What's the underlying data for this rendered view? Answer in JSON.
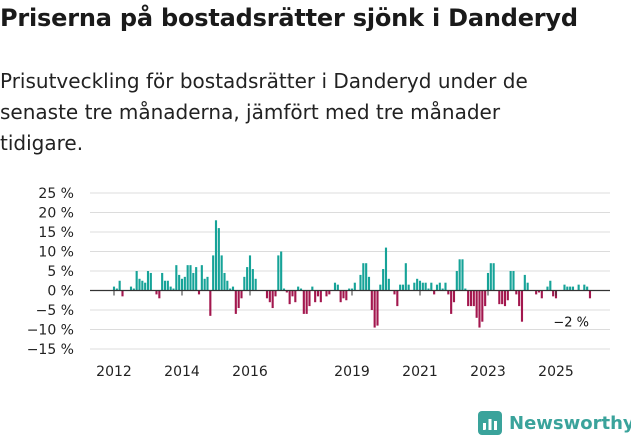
{
  "header": {
    "title": "Priserna på bostadsrätter sjönk i Danderyd",
    "subtitle": "Prisutveckling för bostadsrätter i Danderyd under de senaste tre månaderna, jämfört med tre månader tidigare."
  },
  "brand": {
    "name": "Newsworthy",
    "color": "#3aa39b"
  },
  "colors": {
    "positive": "#16a398",
    "negative": "#a3174e",
    "grid": "#dcdcdc",
    "zero": "#333333"
  },
  "chart_data": {
    "type": "bar",
    "title": "Priserna på bostadsrätter sjönk i Danderyd",
    "xlabel": "",
    "ylabel": "",
    "ylim": [
      -15,
      25
    ],
    "yticks": [
      "25 %",
      "20 %",
      "15 %",
      "10 %",
      "5 %",
      "0 %",
      "−5 %",
      "−10 %",
      "−15 %"
    ],
    "ytick_values": [
      25,
      20,
      15,
      10,
      5,
      0,
      -5,
      -10,
      -15
    ],
    "xticks": [
      "2012",
      "2014",
      "2016",
      "2019",
      "2021",
      "2023",
      "2025"
    ],
    "xtick_values": [
      2012.0,
      2014.0,
      2016.0,
      2019.0,
      2021.0,
      2023.0,
      2025.0
    ],
    "x_start": 2012.0,
    "x_step": 0.08333,
    "values": [
      1,
      0.5,
      2.5,
      -1.5,
      0,
      0,
      1,
      0.5,
      5,
      3,
      2.5,
      2,
      5,
      4.5,
      0,
      -1,
      -2,
      4.5,
      2.5,
      2.5,
      1,
      0.5,
      6.5,
      4,
      3,
      3.5,
      6.5,
      6.5,
      4.5,
      6,
      -1,
      6.5,
      3,
      3.5,
      -6.5,
      9,
      18,
      16,
      9,
      4.5,
      2.5,
      0.5,
      1,
      -6,
      -4.5,
      -2,
      3.5,
      6,
      9,
      5.5,
      3,
      0,
      0,
      0,
      -2,
      -3,
      -4.5,
      -1.5,
      9,
      10,
      0.5,
      -0.5,
      -3.5,
      -1.5,
      -3,
      1,
      0.5,
      -6,
      -6,
      -4,
      1,
      -3,
      -1.5,
      -3,
      0,
      -1.5,
      -1,
      0,
      2,
      1.5,
      -3,
      -2,
      -2.5,
      0.5,
      0.5,
      2,
      0,
      4,
      7,
      7,
      3.5,
      -5,
      -9.5,
      -9,
      1.5,
      5.5,
      11,
      3,
      0,
      -1,
      -4,
      1.5,
      1.5,
      7,
      1.5,
      0,
      2,
      3,
      2.5,
      2,
      2,
      0.5,
      2,
      -1,
      1.5,
      2,
      0.5,
      2,
      -1,
      -6,
      -3,
      5,
      8,
      8,
      0.5,
      -4,
      -4,
      -4,
      -7,
      -9.5,
      -8,
      -4,
      4.5,
      7,
      7,
      0,
      -3.5,
      -3.5,
      -4,
      -2.5,
      5,
      5,
      -1,
      -4,
      -8,
      4,
      2,
      0,
      0,
      -1,
      -0.5,
      -2,
      0,
      1,
      2.5,
      -1.5,
      -2,
      0,
      0,
      1.5,
      1,
      1,
      1,
      0,
      1.5,
      0,
      1.5,
      1,
      -2
    ]
  },
  "annotation": {
    "label": "−2 %"
  }
}
